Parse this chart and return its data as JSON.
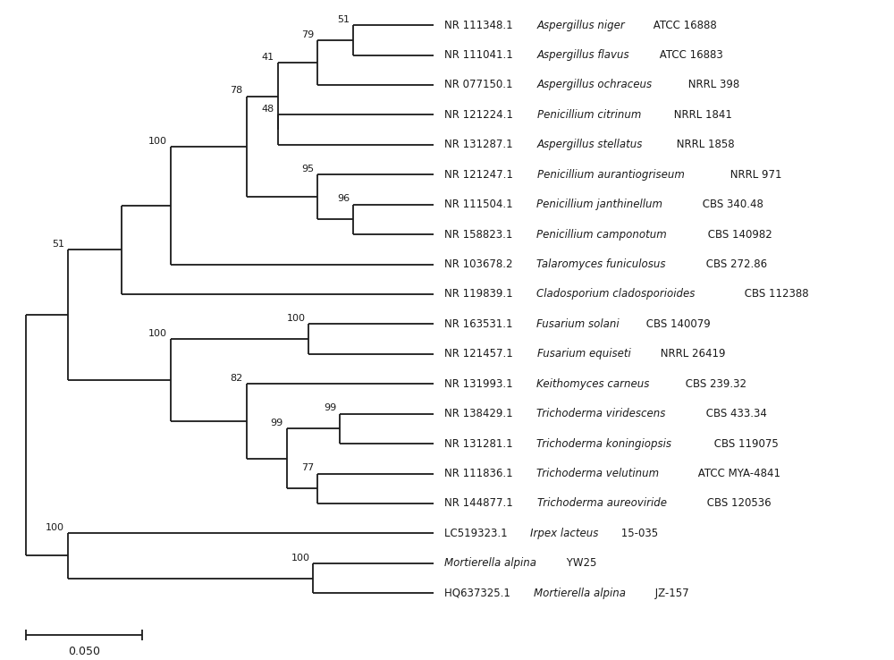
{
  "background": "#ffffff",
  "line_color": "#1a1a1a",
  "text_color": "#1a1a1a",
  "bootstrap_color": "#1a1a1a",
  "font_size": 8.5,
  "bootstrap_font_size": 8.0,
  "line_width": 1.3,
  "scale_bar_label": "0.050",
  "taxa": [
    [
      "NR 111348.1 ",
      "Aspergillus niger",
      " ATCC 16888"
    ],
    [
      "NR 111041.1 ",
      "Aspergillus flavus",
      " ATCC 16883"
    ],
    [
      "NR 077150.1 ",
      "Aspergillus ochraceus",
      " NRRL 398"
    ],
    [
      "NR 121224.1 ",
      "Penicillium citrinum",
      " NRRL 1841"
    ],
    [
      "NR 131287.1 ",
      "Aspergillus stellatus",
      " NRRL 1858"
    ],
    [
      "NR 121247.1 ",
      "Penicillium aurantiogriseum",
      " NRRL 971"
    ],
    [
      "NR 111504.1 ",
      "Penicillium janthinellum",
      " CBS 340.48"
    ],
    [
      "NR 158823.1 ",
      "Penicillium camponotum",
      " CBS 140982"
    ],
    [
      "NR 103678.2 ",
      "Talaromyces funiculosus",
      " CBS 272.86"
    ],
    [
      "NR 119839.1 ",
      "Cladosporium cladosporioides",
      " CBS 112388"
    ],
    [
      "NR 163531.1 ",
      "Fusarium solani",
      " CBS 140079"
    ],
    [
      "NR 121457.1 ",
      "Fusarium equiseti",
      " NRRL 26419"
    ],
    [
      "NR 131993.1 ",
      "Keithomyces carneus",
      " CBS 239.32"
    ],
    [
      "NR 138429.1 ",
      "Trichoderma viridescens",
      " CBS 433.34"
    ],
    [
      "NR 131281.1 ",
      "Trichoderma koningiopsis",
      " CBS 119075"
    ],
    [
      "NR 111836.1 ",
      "Trichoderma velutinum",
      " ATCC MYA-4841"
    ],
    [
      "NR 144877.1 ",
      "Trichoderma aureoviride",
      " CBS 120536"
    ],
    [
      "LC519323.1 ",
      "Irpex lacteus",
      " 15-035"
    ],
    [
      "",
      "Mortierella alpina",
      " YW25"
    ],
    [
      "HQ637325.1 ",
      "Mortierella alpina",
      " JZ-157"
    ]
  ],
  "xlim": [
    0,
    10
  ],
  "ylim": [
    -2.0,
    19.8
  ],
  "tip_x": 4.85,
  "figwidth": 10.0,
  "figheight": 7.38,
  "dpi": 100
}
